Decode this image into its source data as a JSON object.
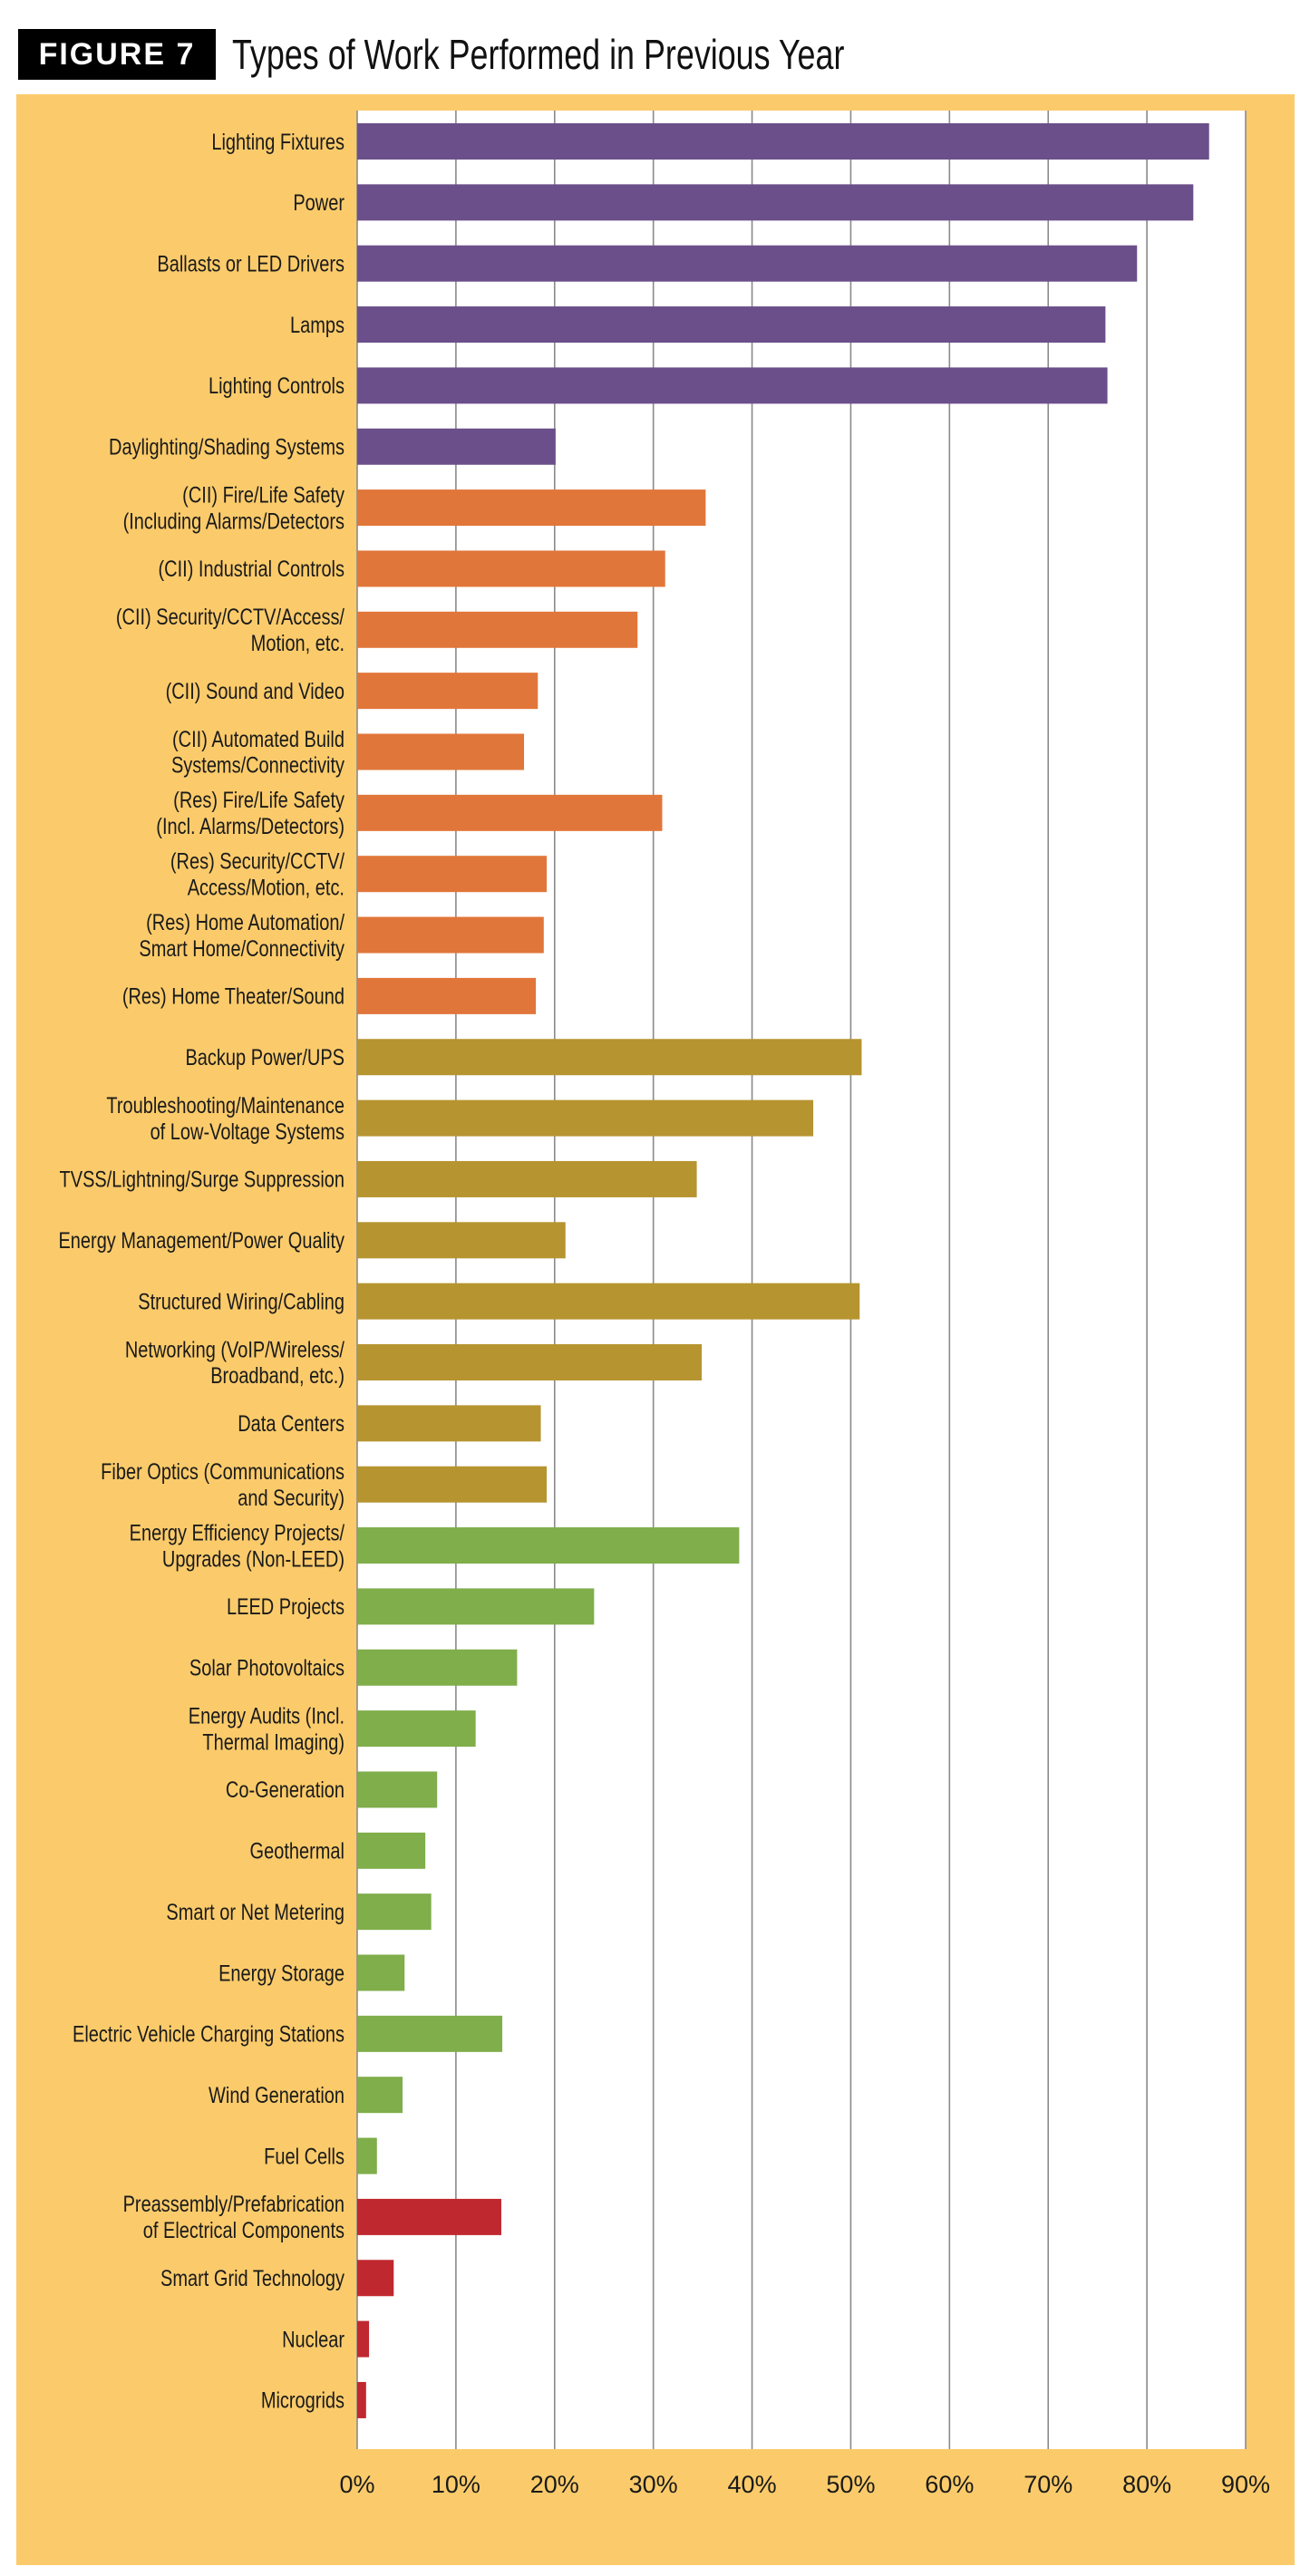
{
  "header": {
    "figure_label": "FIGURE 7",
    "title": "Types of Work Performed in Previous Year"
  },
  "colors": {
    "panel_background": "#FBCB6B",
    "plot_background": "#FFFFFF",
    "gridline": "#8A8A8A",
    "purple": "#6B4F8A",
    "orange": "#E1763A",
    "gold": "#B69430",
    "green": "#7FAE4A",
    "red": "#C0282F"
  },
  "chart_data": {
    "type": "bar",
    "orientation": "horizontal",
    "title": "Types of Work Performed in Previous Year",
    "xlim": [
      0,
      90
    ],
    "x_ticks": [
      "0%",
      "10%",
      "20%",
      "30%",
      "40%",
      "50%",
      "60%",
      "70%",
      "80%",
      "90%"
    ],
    "grid": true,
    "categories": [
      {
        "label": [
          "Lighting Fixtures"
        ],
        "value": 86.3,
        "color": "purple"
      },
      {
        "label": [
          "Power"
        ],
        "value": 84.7,
        "color": "purple"
      },
      {
        "label": [
          "Ballasts or LED Drivers"
        ],
        "value": 79.0,
        "color": "purple"
      },
      {
        "label": [
          "Lamps"
        ],
        "value": 75.8,
        "color": "purple"
      },
      {
        "label": [
          "Lighting Controls"
        ],
        "value": 76.0,
        "color": "purple"
      },
      {
        "label": [
          "Daylighting/Shading Systems"
        ],
        "value": 20.1,
        "color": "purple"
      },
      {
        "label": [
          "(CII) Fire/Life Safety",
          "(Including Alarms/Detectors"
        ],
        "value": 35.3,
        "color": "orange"
      },
      {
        "label": [
          "(CII) Industrial Controls"
        ],
        "value": 31.2,
        "color": "orange"
      },
      {
        "label": [
          "(CII) Security/CCTV/Access/",
          "Motion, etc."
        ],
        "value": 28.4,
        "color": "orange"
      },
      {
        "label": [
          "(CII) Sound and Video"
        ],
        "value": 18.3,
        "color": "orange"
      },
      {
        "label": [
          "(CII) Automated Build",
          "Systems/Connectivity"
        ],
        "value": 16.9,
        "color": "orange"
      },
      {
        "label": [
          "(Res) Fire/Life Safety",
          "(Incl. Alarms/Detectors)"
        ],
        "value": 30.9,
        "color": "orange"
      },
      {
        "label": [
          "(Res) Security/CCTV/",
          "Access/Motion, etc."
        ],
        "value": 19.2,
        "color": "orange"
      },
      {
        "label": [
          "(Res) Home Automation/",
          "Smart Home/Connectivity"
        ],
        "value": 18.9,
        "color": "orange"
      },
      {
        "label": [
          "(Res) Home Theater/Sound"
        ],
        "value": 18.1,
        "color": "orange"
      },
      {
        "label": [
          "Backup Power/UPS"
        ],
        "value": 51.1,
        "color": "gold"
      },
      {
        "label": [
          "Troubleshooting/Maintenance",
          "of Low-Voltage Systems"
        ],
        "value": 46.2,
        "color": "gold"
      },
      {
        "label": [
          "TVSS/Lightning/Surge Suppression"
        ],
        "value": 34.4,
        "color": "gold"
      },
      {
        "label": [
          "Energy Management/Power Quality"
        ],
        "value": 21.1,
        "color": "gold"
      },
      {
        "label": [
          "Structured Wiring/Cabling"
        ],
        "value": 50.9,
        "color": "gold"
      },
      {
        "label": [
          "Networking (VoIP/Wireless/",
          "Broadband, etc.)"
        ],
        "value": 34.9,
        "color": "gold"
      },
      {
        "label": [
          "Data Centers"
        ],
        "value": 18.6,
        "color": "gold"
      },
      {
        "label": [
          "Fiber Optics (Communications",
          "and Security)"
        ],
        "value": 19.2,
        "color": "gold"
      },
      {
        "label": [
          "Energy Efficiency Projects/",
          "Upgrades (Non-LEED)"
        ],
        "value": 38.7,
        "color": "green"
      },
      {
        "label": [
          "LEED Projects"
        ],
        "value": 24.0,
        "color": "green"
      },
      {
        "label": [
          "Solar Photovoltaics"
        ],
        "value": 16.2,
        "color": "green"
      },
      {
        "label": [
          "Energy Audits (Incl.",
          "Thermal Imaging)"
        ],
        "value": 12.0,
        "color": "green"
      },
      {
        "label": [
          "Co-Generation"
        ],
        "value": 8.1,
        "color": "green"
      },
      {
        "label": [
          "Geothermal"
        ],
        "value": 6.9,
        "color": "green"
      },
      {
        "label": [
          "Smart or Net Metering"
        ],
        "value": 7.5,
        "color": "green"
      },
      {
        "label": [
          "Energy Storage"
        ],
        "value": 4.8,
        "color": "green"
      },
      {
        "label": [
          "Electric Vehicle Charging Stations"
        ],
        "value": 14.7,
        "color": "green"
      },
      {
        "label": [
          "Wind Generation"
        ],
        "value": 4.6,
        "color": "green"
      },
      {
        "label": [
          "Fuel Cells"
        ],
        "value": 2.0,
        "color": "green"
      },
      {
        "label": [
          "Preassembly/Prefabrication",
          "of Electrical Components"
        ],
        "value": 14.6,
        "color": "red"
      },
      {
        "label": [
          "Smart Grid Technology"
        ],
        "value": 3.7,
        "color": "red"
      },
      {
        "label": [
          "Nuclear"
        ],
        "value": 1.2,
        "color": "red"
      },
      {
        "label": [
          "Microgrids"
        ],
        "value": 0.9,
        "color": "red"
      }
    ]
  }
}
